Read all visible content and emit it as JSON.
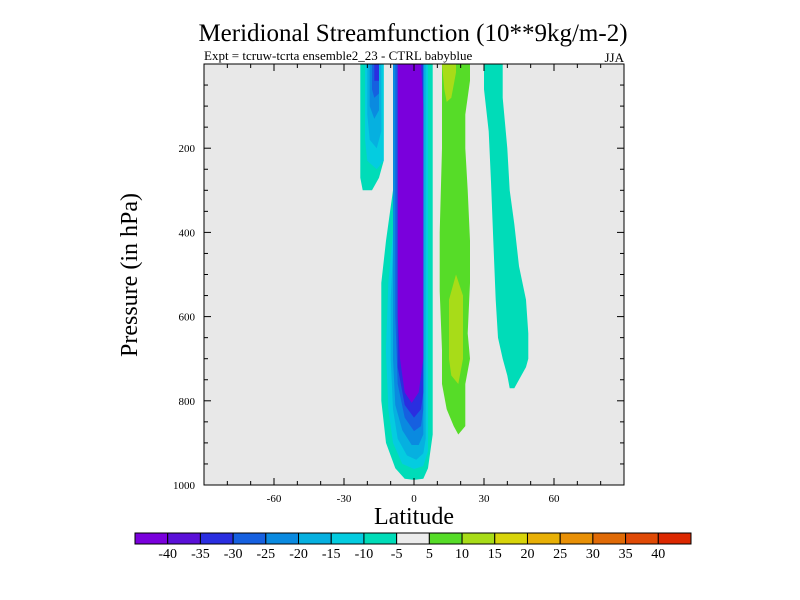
{
  "chart_data": {
    "type": "contour",
    "title": "Meridional Streamfunction (10**9kg/m-2)",
    "subtitle_left": "Expt = tcruw-tcrta ensemble2_23 - CTRL babyblue",
    "subtitle_right": "JJA",
    "xlabel": "Latitude",
    "ylabel": "Pressure (in hPa)",
    "xlim": [
      -90,
      90
    ],
    "ylim": [
      1000,
      0
    ],
    "x_ticks": [
      -60,
      -30,
      0,
      30,
      60
    ],
    "x_tick_labels": [
      "-60",
      "-30",
      "0",
      "30",
      "60"
    ],
    "y_ticks": [
      200,
      400,
      600,
      800,
      1000
    ],
    "y_tick_labels": [
      "200",
      "400",
      "600",
      "800",
      "1000"
    ],
    "background_color": "#e8e8e8",
    "colorbar": {
      "colors": [
        "#7a00dc",
        "#5a10d8",
        "#2a2ee0",
        "#1660e0",
        "#0a8ae0",
        "#06b0e0",
        "#04cce0",
        "#00dcb8",
        "#ececec",
        "#56dc28",
        "#a8dc18",
        "#d8d40a",
        "#e8b006",
        "#e89006",
        "#e06a06",
        "#e04a06",
        "#dc2800"
      ],
      "labels": [
        "-40",
        "-35",
        "-30",
        "-25",
        "-20",
        "-15",
        "-10",
        "-5",
        "5",
        "10",
        "15",
        "20",
        "25",
        "30",
        "35",
        "40"
      ]
    },
    "contour_regions": [
      {
        "level": -10,
        "color": "#00dcb8",
        "polygons": [
          [
            [
              -23,
              0
            ],
            [
              -9,
              0
            ],
            [
              -9,
              300
            ],
            [
              -12,
              420
            ],
            [
              -14,
              520
            ],
            [
              -14,
              680
            ],
            [
              -14,
              800
            ],
            [
              -12,
              900
            ],
            [
              -8,
              960
            ],
            [
              -4,
              985
            ],
            [
              0,
              988
            ],
            [
              4,
              985
            ],
            [
              6,
              960
            ],
            [
              8,
              880
            ],
            [
              8,
              0
            ],
            [
              -2,
              0
            ],
            [
              -2,
              0
            ],
            [
              -13,
              0
            ],
            [
              -13,
              230
            ],
            [
              -15,
              270
            ],
            [
              -18,
              300
            ],
            [
              -22,
              300
            ],
            [
              -23,
              270
            ]
          ],
          [
            [
              30,
              0
            ],
            [
              38,
              0
            ],
            [
              38,
              80
            ],
            [
              40,
              200
            ],
            [
              41,
              300
            ],
            [
              43,
              380
            ],
            [
              45,
              480
            ],
            [
              48,
              560
            ],
            [
              49,
              640
            ],
            [
              49,
              700
            ],
            [
              48,
              720
            ],
            [
              43,
              770
            ],
            [
              41,
              770
            ],
            [
              40,
              740
            ],
            [
              38,
              700
            ],
            [
              36,
              650
            ],
            [
              35,
              560
            ],
            [
              34,
              420
            ],
            [
              33,
              280
            ],
            [
              32,
              160
            ],
            [
              30,
              60
            ]
          ]
        ]
      },
      {
        "level": -15,
        "color": "#04cce0",
        "polygons": [
          [
            [
              -21,
              0
            ],
            [
              -13,
              0
            ],
            [
              -13,
              230
            ],
            [
              -16,
              250
            ],
            [
              -20,
              230
            ],
            [
              -21,
              180
            ]
          ],
          [
            [
              -12,
              0
            ],
            [
              -9,
              0
            ],
            [
              -9,
              400
            ],
            [
              -11,
              520
            ],
            [
              -12,
              680
            ],
            [
              -11,
              820
            ],
            [
              -9,
              900
            ],
            [
              -5,
              950
            ],
            [
              0,
              962
            ],
            [
              4,
              955
            ],
            [
              6,
              920
            ],
            [
              6,
              0
            ]
          ]
        ]
      },
      {
        "level": -20,
        "color": "#06b0e0",
        "polygons": [
          [
            [
              -20,
              0
            ],
            [
              -14,
              0
            ],
            [
              -14,
              160
            ],
            [
              -16,
              200
            ],
            [
              -19,
              180
            ],
            [
              -20,
              120
            ]
          ],
          [
            [
              -11,
              0
            ],
            [
              -9,
              0
            ],
            [
              -9,
              440
            ],
            [
              -10,
              560
            ],
            [
              -10,
              700
            ],
            [
              -9,
              820
            ],
            [
              -7,
              890
            ],
            [
              -3,
              930
            ],
            [
              1,
              940
            ],
            [
              4,
              925
            ],
            [
              5,
              890
            ],
            [
              5,
              0
            ]
          ]
        ]
      },
      {
        "level": -25,
        "color": "#0a8ae0",
        "polygons": [
          [
            [
              -19,
              0
            ],
            [
              -15,
              0
            ],
            [
              -15,
              110
            ],
            [
              -17,
              130
            ],
            [
              -19,
              100
            ]
          ],
          [
            [
              -10,
              0
            ],
            [
              -9,
              0
            ],
            [
              -9,
              500
            ],
            [
              -9,
              700
            ],
            [
              -8,
              810
            ],
            [
              -5,
              870
            ],
            [
              -1,
              905
            ],
            [
              2,
              905
            ],
            [
              4,
              880
            ],
            [
              4,
              0
            ]
          ]
        ]
      },
      {
        "level": -30,
        "color": "#1660e0",
        "polygons": [
          [
            [
              -18,
              0
            ],
            [
              -15,
              0
            ],
            [
              -15,
              70
            ],
            [
              -17,
              80
            ],
            [
              -18,
              60
            ]
          ],
          [
            [
              -9,
              0
            ],
            [
              -8,
              0
            ],
            [
              -8,
              600
            ],
            [
              -7,
              760
            ],
            [
              -4,
              840
            ],
            [
              0,
              872
            ],
            [
              3,
              860
            ],
            [
              4,
              820
            ],
            [
              4,
              0
            ]
          ]
        ]
      },
      {
        "level": -35,
        "color": "#2a2ee0",
        "polygons": [
          [
            [
              -17,
              0
            ],
            [
              -15,
              0
            ],
            [
              -15,
              40
            ],
            [
              -17,
              40
            ]
          ],
          [
            [
              -8,
              0
            ],
            [
              -7,
              0
            ],
            [
              -7,
              720
            ],
            [
              -4,
              810
            ],
            [
              0,
              840
            ],
            [
              3,
              820
            ],
            [
              4,
              780
            ],
            [
              4,
              0
            ]
          ]
        ]
      },
      {
        "level": -40,
        "color": "#7a00dc",
        "polygons": [
          [
            [
              -7,
              0
            ],
            [
              3,
              0
            ],
            [
              4,
              100
            ],
            [
              4,
              700
            ],
            [
              2,
              780
            ],
            [
              -1,
              805
            ],
            [
              -4,
              780
            ],
            [
              -6,
              700
            ],
            [
              -7,
              600
            ]
          ]
        ]
      },
      {
        "level": 10,
        "color": "#56dc28",
        "polygons": [
          [
            [
              12,
              0
            ],
            [
              24,
              0
            ],
            [
              24,
              40
            ],
            [
              22,
              120
            ],
            [
              22,
              200
            ],
            [
              23,
              300
            ],
            [
              24,
              420
            ],
            [
              24,
              520
            ],
            [
              23,
              640
            ],
            [
              24,
              700
            ],
            [
              22,
              760
            ],
            [
              22,
              860
            ],
            [
              19,
              880
            ],
            [
              17,
              860
            ],
            [
              14,
              820
            ],
            [
              12,
              760
            ],
            [
              12,
              680
            ],
            [
              11,
              540
            ],
            [
              11,
              400
            ],
            [
              12,
              200
            ],
            [
              12,
              80
            ]
          ]
        ]
      },
      {
        "level": 15,
        "color": "#a8dc18",
        "polygons": [
          [
            [
              12,
              0
            ],
            [
              18,
              0
            ],
            [
              18,
              20
            ],
            [
              17,
              50
            ],
            [
              16,
              80
            ],
            [
              14,
              90
            ],
            [
              13,
              60
            ]
          ],
          [
            [
              15,
              560
            ],
            [
              18,
              500
            ],
            [
              21,
              550
            ],
            [
              21,
              700
            ],
            [
              19,
              760
            ],
            [
              16,
              740
            ],
            [
              15,
              700
            ]
          ]
        ]
      }
    ]
  }
}
